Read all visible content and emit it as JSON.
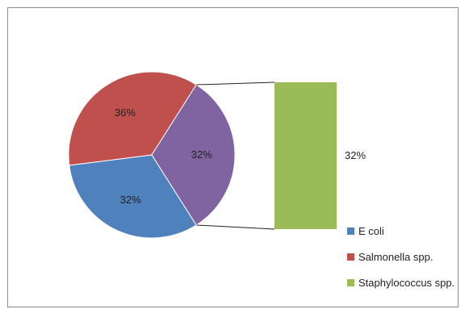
{
  "chart_data": {
    "type": "pie",
    "subtype": "pie-of-pie (bar of pie)",
    "slices": [
      {
        "name": "E coli",
        "value": 32,
        "label": "32%",
        "color": "#4f81bd"
      },
      {
        "name": "Salmonella spp.",
        "value": 36,
        "label": "36%",
        "color": "#c0504d"
      },
      {
        "name": "Staphylococcus spp.",
        "value": 32,
        "label": "32%",
        "color": "#8064a2"
      }
    ],
    "secondary_bar": {
      "name": "Staphylococcus spp.",
      "value": 32,
      "label": "32%",
      "color": "#9bbb59"
    },
    "legend": {
      "position": "bottom-right",
      "entries": [
        {
          "name": "E coli",
          "color": "#4f81bd"
        },
        {
          "name": "Salmonella spp.",
          "color": "#c0504d"
        },
        {
          "name": "Staphylococcus spp.",
          "color": "#9bbb59"
        }
      ]
    }
  }
}
